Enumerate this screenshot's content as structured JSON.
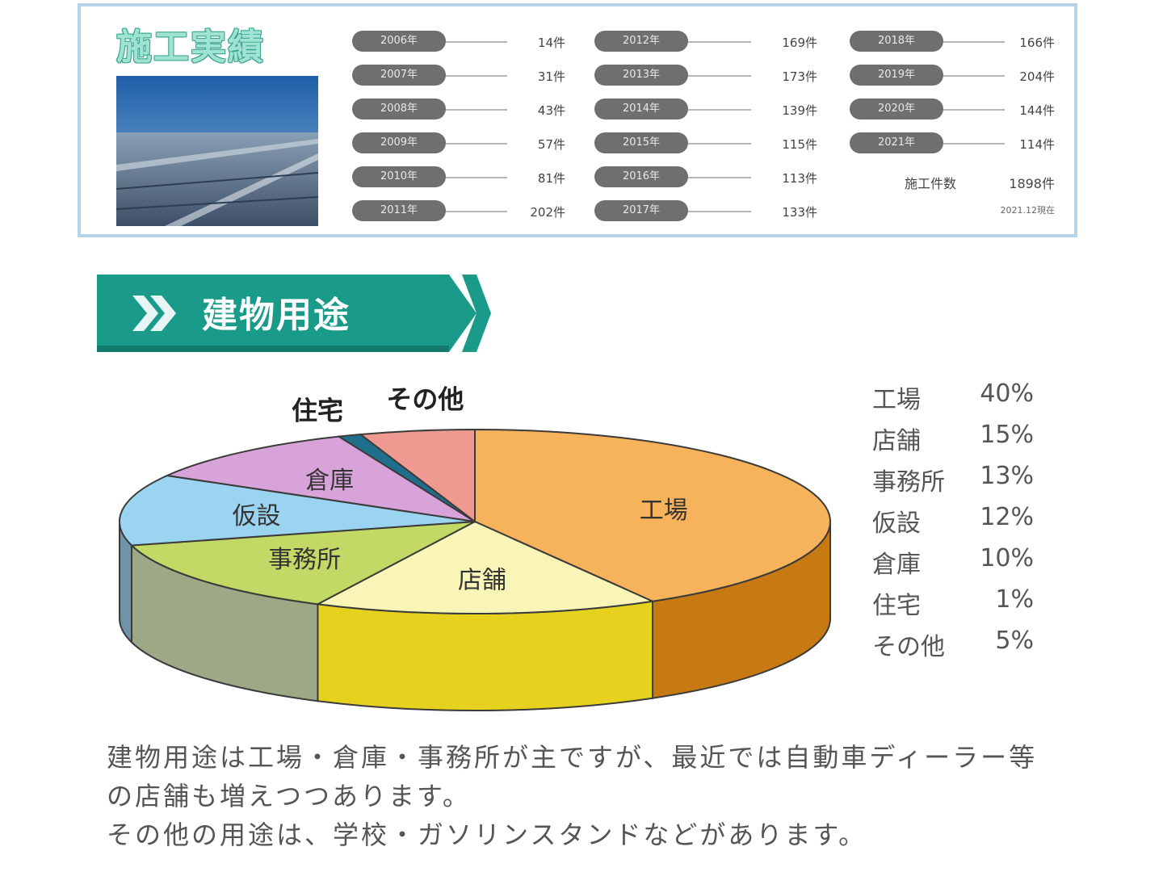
{
  "record": {
    "title": "施工実績",
    "years": [
      {
        "year": "2006年",
        "count": "14件"
      },
      {
        "year": "2007年",
        "count": "31件"
      },
      {
        "year": "2008年",
        "count": "43件"
      },
      {
        "year": "2009年",
        "count": "57件"
      },
      {
        "year": "2010年",
        "count": "81件"
      },
      {
        "year": "2011年",
        "count": "202件"
      },
      {
        "year": "2012年",
        "count": "169件"
      },
      {
        "year": "2013年",
        "count": "173件"
      },
      {
        "year": "2014年",
        "count": "139件"
      },
      {
        "year": "2015年",
        "count": "115件"
      },
      {
        "year": "2016年",
        "count": "113件"
      },
      {
        "year": "2017年",
        "count": "133件"
      },
      {
        "year": "2018年",
        "count": "166件"
      },
      {
        "year": "2019年",
        "count": "204件"
      },
      {
        "year": "2020年",
        "count": "144件"
      },
      {
        "year": "2021年",
        "count": "114件"
      }
    ],
    "total_label": "施工件数",
    "total_value": "1898件",
    "as_of": "2021.12現在"
  },
  "section": {
    "title": "建物用途",
    "chevrons": "»"
  },
  "chart_data": {
    "type": "pie",
    "title": "",
    "slices": [
      {
        "label": "工場",
        "value": 40,
        "display": "40%",
        "color": "#f7b25c"
      },
      {
        "label": "店舗",
        "value": 15,
        "display": "15%",
        "color": "#f8f5b7"
      },
      {
        "label": "事務所",
        "value": 13,
        "display": "13%",
        "color": "#c3d966"
      },
      {
        "label": "仮設",
        "value": 12,
        "display": "12%",
        "color": "#9bd4f0"
      },
      {
        "label": "倉庫",
        "value": 10,
        "display": "10%",
        "color": "#d7a3d9"
      },
      {
        "label": "住宅",
        "value": 1,
        "display": "1%",
        "color": "#1f6f8c"
      },
      {
        "label": "その他",
        "value": 5,
        "display": "5%",
        "color": "#ef9a91"
      }
    ],
    "side_colors": {
      "工場": "#c77a12",
      "店舗": "#e6d21e",
      "事務所": "#9da887"
    }
  },
  "description": {
    "line1": "建物用途は工場・倉庫・事務所が主ですが、最近では自動車ディーラー等",
    "line2": "の店舗も増えつつあります。",
    "line3": "その他の用途は、学校・ガソリンスタンドなどがあります。"
  }
}
